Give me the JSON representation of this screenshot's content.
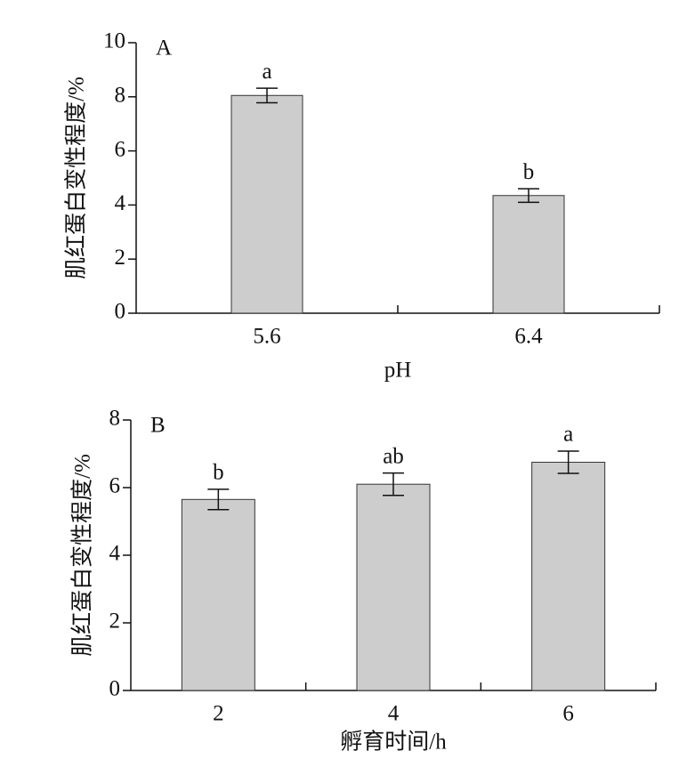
{
  "chart_data": [
    {
      "type": "bar",
      "panel": "A",
      "x_label": "pH",
      "y_label": "肌红蛋白变性程度/%",
      "categories": [
        "5.6",
        "6.4"
      ],
      "values": [
        8.05,
        4.35
      ],
      "errors": [
        0.27,
        0.25
      ],
      "significance": [
        "a",
        "b"
      ],
      "color": "#cdcdcd",
      "ylim": [
        0,
        10
      ],
      "yticks": [
        0,
        2,
        4,
        6,
        8,
        10
      ]
    },
    {
      "type": "bar",
      "panel": "B",
      "x_label": "孵育时间/h",
      "y_label": "肌红蛋白变性程度/%",
      "categories": [
        "2",
        "4",
        "6"
      ],
      "values": [
        5.65,
        6.1,
        6.75
      ],
      "errors": [
        0.3,
        0.33,
        0.33
      ],
      "significance": [
        "b",
        "ab",
        "a"
      ],
      "color": "#cdcdcd",
      "ylim": [
        0,
        8
      ],
      "yticks": [
        0,
        2,
        4,
        6,
        8
      ]
    }
  ]
}
